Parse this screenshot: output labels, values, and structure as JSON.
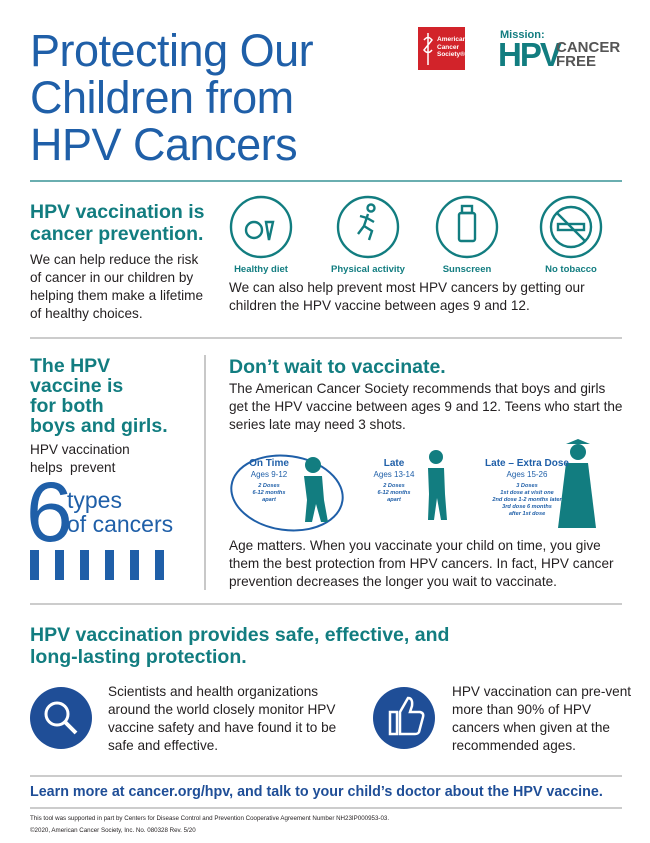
{
  "header": {
    "title_lines": [
      "Protecting Our",
      "Children from",
      "HPV Cancers"
    ],
    "logo": {
      "society": "American Cancer Society®",
      "mission": "Mission:",
      "hpv": "HPV",
      "cancer": "CANCER",
      "free": "FREE"
    }
  },
  "prevention": {
    "heading_lines": [
      "HPV vaccination is",
      "cancer prevention."
    ],
    "text": "We can help reduce the risk of cancer in our children by helping them make a lifetime of healthy choices.",
    "icons": [
      "Healthy diet",
      "Physical activity",
      "Sunscreen",
      "No tobacco"
    ],
    "text2": "We can also help prevent most HPV cancers by getting our children the HPV vaccine between ages 9 and 12."
  },
  "boys_girls": {
    "heading_lines": [
      "The HPV",
      "vaccine is",
      "for both",
      "boys and girls."
    ],
    "text_lines": [
      "HPV vaccination",
      "helps  prevent"
    ],
    "number": "6",
    "number_text_lines": [
      "types",
      "of cancers"
    ]
  },
  "timing": {
    "heading": "Don’t wait to vaccinate.",
    "text": "The American Cancer Society recommends that boys and girls get the HPV vaccine between ages 9 and 12. Teens who start the series late may need 3 shots.",
    "stages": [
      {
        "title": "On Time",
        "ages": "Ages 9-12",
        "doses": [
          "2 Doses",
          "6-12 months",
          "apart"
        ]
      },
      {
        "title": "Late",
        "ages": "Ages 13-14",
        "doses": [
          "2 Doses",
          "6-12 months",
          "apart"
        ]
      },
      {
        "title": "Late – Extra Dose",
        "ages": "Ages 15-26",
        "doses": [
          "3 Doses",
          "1st dose at visit one",
          "2nd dose 1-2 months later",
          "3rd dose 6 months",
          "after 1st dose"
        ]
      }
    ],
    "text2": "Age matters. When you vaccinate your child on time, you give them the best protection from HPV cancers. In fact, HPV cancer prevention decreases the longer you wait to vaccinate."
  },
  "protection": {
    "heading": "HPV vaccination provides safe, effective, and long-lasting protection.",
    "items": [
      "Scientists and health organizations around the world closely monitor HPV vaccine safety and have found it to be safe and effective.",
      "HPV vaccination can pre-vent more than 90% of HPV cancers when given at the recommended ages."
    ]
  },
  "footer": {
    "cta": "Learn more at cancer.org/hpv, and talk to your child’s doctor about the HPV vaccine.",
    "notes": [
      "This tool was supported in part by Centers for Disease Control and Prevention Cooperative Agreement Number NH23IP000953-03.",
      "©2020, American Cancer Society, Inc.  No. 080328 Rev. 5/20"
    ]
  }
}
